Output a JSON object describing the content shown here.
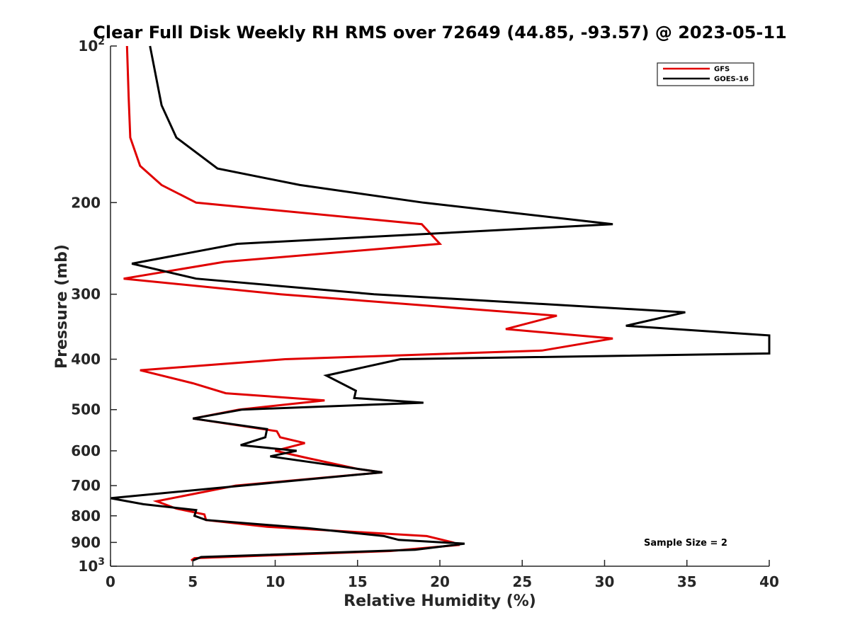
{
  "chart_data": {
    "type": "line",
    "title": "Clear Full Disk Weekly RH RMS over 72649 (44.85, -93.57) @ 2023-05-11",
    "xlabel": "Relative Humidity (%)",
    "ylabel": "Pressure (mb)",
    "xlim": [
      0,
      40
    ],
    "ylim": [
      100,
      1000
    ],
    "y_scale": "log",
    "y_reversed": true,
    "grid": false,
    "legend_position": "top-right",
    "x_ticks": [
      "0",
      "5",
      "10",
      "15",
      "20",
      "25",
      "30",
      "35",
      "40"
    ],
    "y_ticks": [
      {
        "value": 100,
        "base": "10",
        "exp": "2"
      },
      {
        "value": 200,
        "label": "200"
      },
      {
        "value": 300,
        "label": "300"
      },
      {
        "value": 400,
        "label": "400"
      },
      {
        "value": 500,
        "label": "500"
      },
      {
        "value": 600,
        "label": "600"
      },
      {
        "value": 700,
        "label": "700"
      },
      {
        "value": 800,
        "label": "800"
      },
      {
        "value": 900,
        "label": "900"
      },
      {
        "value": 1000,
        "base": "10",
        "exp": "3"
      }
    ],
    "annotation": "Sample Size = 2",
    "series": [
      {
        "name": "GFS",
        "color": "#e00000",
        "points": [
          [
            1.0,
            100
          ],
          [
            1.1,
            125
          ],
          [
            1.2,
            150
          ],
          [
            1.8,
            170
          ],
          [
            3.1,
            185
          ],
          [
            5.2,
            200
          ],
          [
            18.9,
            220
          ],
          [
            20.0,
            240
          ],
          [
            6.9,
            260
          ],
          [
            0.8,
            280
          ],
          [
            10.3,
            300
          ],
          [
            27.1,
            330
          ],
          [
            24.0,
            350
          ],
          [
            30.5,
            365
          ],
          [
            26.2,
            385
          ],
          [
            10.6,
            400
          ],
          [
            1.8,
            420
          ],
          [
            5.0,
            445
          ],
          [
            7.0,
            465
          ],
          [
            13.0,
            480
          ],
          [
            7.8,
            500
          ],
          [
            5.0,
            520
          ],
          [
            10.1,
            550
          ],
          [
            10.3,
            565
          ],
          [
            11.8,
            580
          ],
          [
            10.0,
            600
          ],
          [
            12.0,
            620
          ],
          [
            15.0,
            650
          ],
          [
            16.5,
            660
          ],
          [
            7.6,
            700
          ],
          [
            2.8,
            750
          ],
          [
            4.0,
            775
          ],
          [
            5.7,
            795
          ],
          [
            5.8,
            815
          ],
          [
            9.5,
            840
          ],
          [
            19.2,
            875
          ],
          [
            20.8,
            900
          ],
          [
            21.2,
            910
          ],
          [
            17.0,
            935
          ],
          [
            5.1,
            965
          ],
          [
            4.9,
            975
          ]
        ]
      },
      {
        "name": "GOES-16",
        "color": "#000000",
        "points": [
          [
            2.4,
            100
          ],
          [
            3.1,
            130
          ],
          [
            4.0,
            150
          ],
          [
            6.5,
            172
          ],
          [
            11.5,
            185
          ],
          [
            19.0,
            200
          ],
          [
            30.5,
            220
          ],
          [
            7.7,
            240
          ],
          [
            1.3,
            262
          ],
          [
            5.2,
            280
          ],
          [
            16.0,
            300
          ],
          [
            34.9,
            325
          ],
          [
            31.3,
            345
          ],
          [
            40.0,
            360
          ],
          [
            40.0,
            390
          ],
          [
            17.6,
            400
          ],
          [
            13.1,
            430
          ],
          [
            14.9,
            460
          ],
          [
            14.8,
            475
          ],
          [
            19.0,
            485
          ],
          [
            8.0,
            500
          ],
          [
            5.0,
            520
          ],
          [
            9.5,
            545
          ],
          [
            9.4,
            565
          ],
          [
            7.9,
            585
          ],
          [
            11.3,
            600
          ],
          [
            9.7,
            615
          ],
          [
            16.5,
            660
          ],
          [
            8.0,
            700
          ],
          [
            0.0,
            740
          ],
          [
            2.0,
            760
          ],
          [
            5.2,
            780
          ],
          [
            5.1,
            800
          ],
          [
            5.8,
            815
          ],
          [
            12.0,
            845
          ],
          [
            16.6,
            875
          ],
          [
            17.5,
            890
          ],
          [
            21.5,
            905
          ],
          [
            18.5,
            930
          ],
          [
            5.5,
            960
          ],
          [
            5.0,
            975
          ]
        ]
      }
    ]
  }
}
